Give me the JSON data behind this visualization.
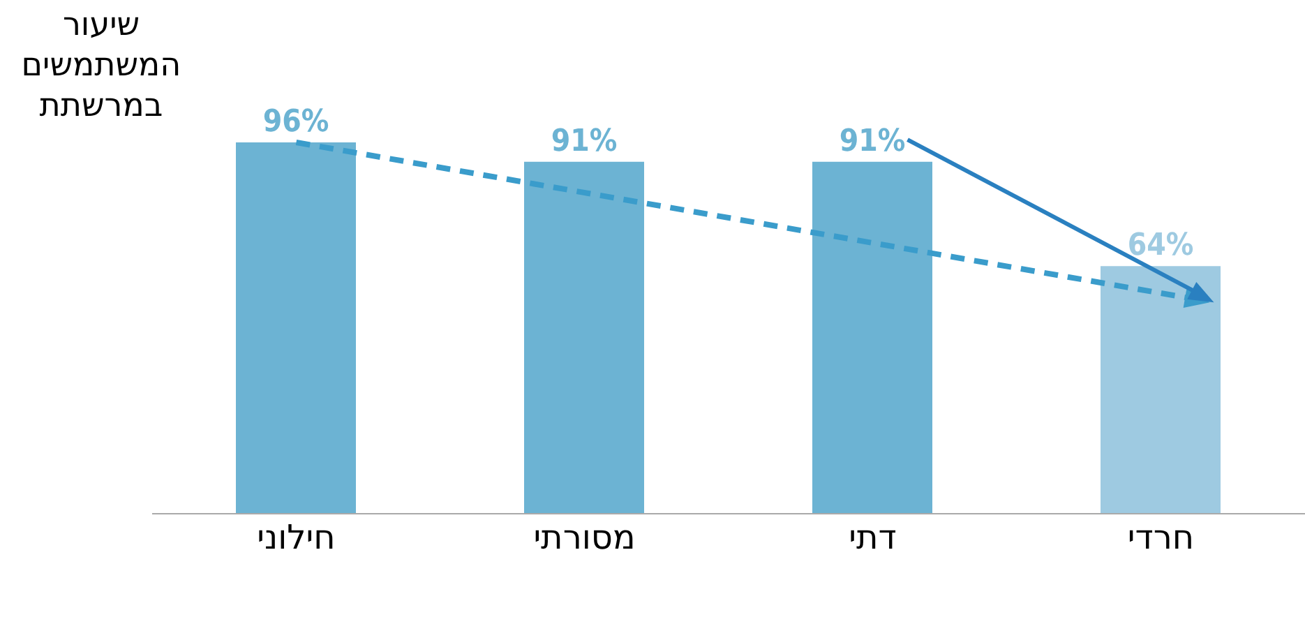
{
  "chart_data": {
    "type": "bar",
    "ylabel": "שיעור המשתמשים במרשתת",
    "categories": [
      "חילוני",
      "מסורתי",
      "דתי",
      "חרדי"
    ],
    "values": [
      96,
      91,
      91,
      64
    ],
    "colors": [
      "#6cb3d3",
      "#6cb3d3",
      "#6cb3d3",
      "#9ecae1"
    ],
    "value_labels": [
      "96%",
      "91%",
      "91%",
      "64%"
    ]
  }
}
